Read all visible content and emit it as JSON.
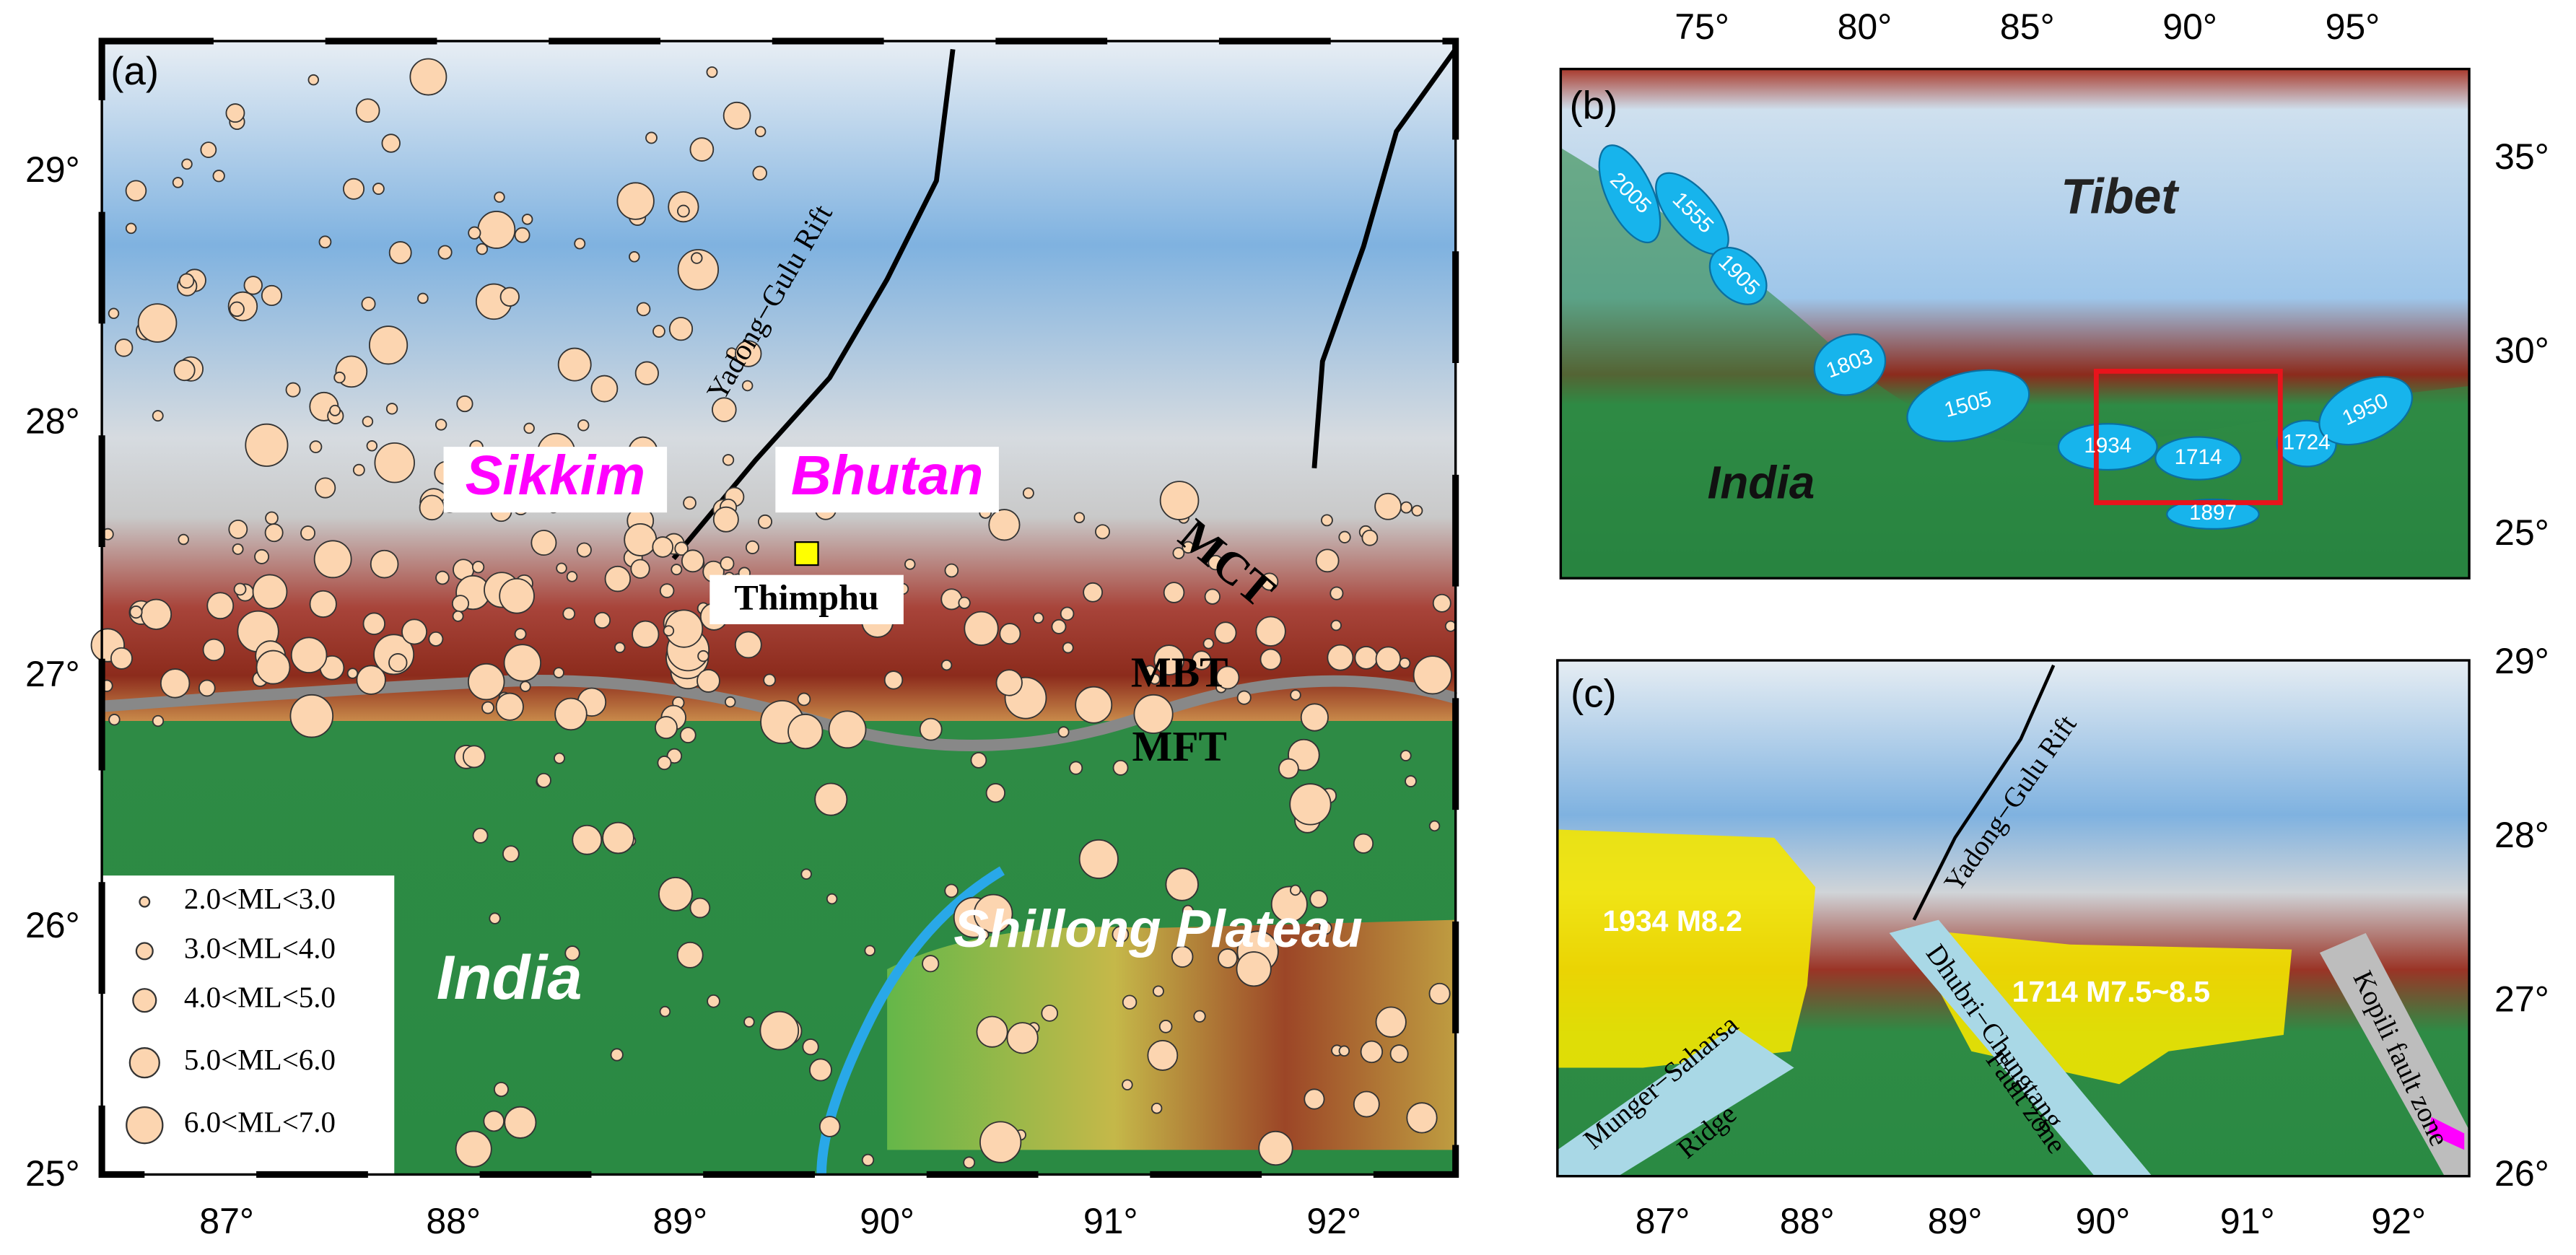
{
  "panels": [
    {
      "label": "(a)",
      "x_ticks": [
        "87°",
        "88°",
        "89°",
        "90°",
        "91°",
        "92°"
      ],
      "y_ticks": [
        "29°",
        "28°",
        "27°",
        "26°",
        "25°"
      ],
      "regions": [
        "Sikkim",
        "Bhutan"
      ],
      "city": "Thimphu",
      "faults": [
        "MCT",
        "MBT",
        "MFT",
        "Yadong−Gulu Rift"
      ],
      "areas": [
        "India",
        "Shillong Plateau"
      ],
      "legend": [
        "2.0<ML<3.0",
        "3.0<ML<4.0",
        "4.0<ML<5.0",
        "5.0<ML<6.0",
        "6.0<ML<7.0"
      ]
    },
    {
      "label": "(b)",
      "x_ticks": [
        "75°",
        "80°",
        "85°",
        "90°",
        "95°"
      ],
      "y_ticks": [
        "35°",
        "30°",
        "25°"
      ],
      "areas": [
        "Tibet",
        "India"
      ],
      "ruptures": [
        "2005",
        "1555",
        "1905",
        "1803",
        "1505",
        "1934",
        "1714",
        "1724",
        "1950",
        "1897"
      ]
    },
    {
      "label": "(c)",
      "x_ticks": [
        "87°",
        "88°",
        "89°",
        "90°",
        "91°",
        "92°"
      ],
      "y_ticks": [
        "29°",
        "28°",
        "27°",
        "26°"
      ],
      "events": [
        "1934 M8.2",
        "1714 M7.5~8.5"
      ],
      "features": [
        "Yadong−Gulu Rift",
        "Munger−Saharsa",
        "Ridge",
        "Dhubri−Chungtang",
        "Fault zone",
        "Kopili fault zone"
      ]
    }
  ]
}
